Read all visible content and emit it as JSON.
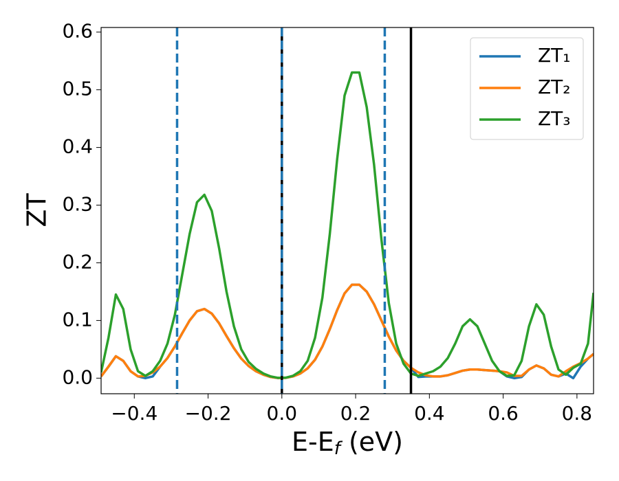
{
  "chart_data": {
    "type": "line",
    "ylabel": "ZT",
    "xlabel": [
      "E-E",
      "f",
      " (eV)"
    ],
    "x": [
      -0.49,
      -0.47,
      -0.45,
      -0.43,
      -0.41,
      -0.39,
      -0.37,
      -0.35,
      -0.33,
      -0.31,
      -0.29,
      -0.27,
      -0.25,
      -0.23,
      -0.21,
      -0.19,
      -0.17,
      -0.15,
      -0.13,
      -0.11,
      -0.09,
      -0.07,
      -0.05,
      -0.03,
      -0.01,
      0.01,
      0.03,
      0.05,
      0.07,
      0.09,
      0.11,
      0.13,
      0.15,
      0.17,
      0.19,
      0.21,
      0.23,
      0.25,
      0.27,
      0.29,
      0.31,
      0.33,
      0.35,
      0.37,
      0.39,
      0.41,
      0.43,
      0.45,
      0.47,
      0.49,
      0.51,
      0.53,
      0.55,
      0.57,
      0.59,
      0.61,
      0.63,
      0.65,
      0.67,
      0.69,
      0.71,
      0.73,
      0.75,
      0.77,
      0.79,
      0.81,
      0.83,
      0.845
    ],
    "series": [
      {
        "name": "ZT₁",
        "color": "#1f77b4",
        "values": [
          0.003,
          0.02,
          0.038,
          0.03,
          0.012,
          0.003,
          0.0,
          0.003,
          0.02,
          0.035,
          0.055,
          0.078,
          0.1,
          0.116,
          0.12,
          0.112,
          0.095,
          0.073,
          0.052,
          0.034,
          0.021,
          0.012,
          0.006,
          0.002,
          0.0003,
          0.0005,
          0.003,
          0.008,
          0.017,
          0.032,
          0.055,
          0.085,
          0.118,
          0.147,
          0.162,
          0.162,
          0.15,
          0.128,
          0.1,
          0.072,
          0.048,
          0.03,
          0.018,
          0.002,
          0.003,
          0.003,
          0.003,
          0.005,
          0.009,
          0.013,
          0.015,
          0.015,
          0.014,
          0.013,
          0.012,
          0.003,
          0.0,
          0.002,
          0.015,
          0.022,
          0.017,
          0.006,
          0.003,
          0.008,
          0.0,
          0.02,
          0.034,
          0.042
        ]
      },
      {
        "name": "ZT₂",
        "color": "#ff7f0e",
        "values": [
          0.003,
          0.02,
          0.038,
          0.03,
          0.012,
          0.003,
          0.004,
          0.01,
          0.02,
          0.035,
          0.055,
          0.078,
          0.1,
          0.116,
          0.12,
          0.112,
          0.095,
          0.073,
          0.052,
          0.034,
          0.021,
          0.012,
          0.006,
          0.002,
          0.0003,
          0.0005,
          0.003,
          0.008,
          0.017,
          0.032,
          0.055,
          0.085,
          0.118,
          0.147,
          0.162,
          0.162,
          0.15,
          0.128,
          0.1,
          0.072,
          0.048,
          0.03,
          0.018,
          0.01,
          0.005,
          0.003,
          0.003,
          0.005,
          0.009,
          0.013,
          0.015,
          0.015,
          0.014,
          0.013,
          0.012,
          0.01,
          0.004,
          0.004,
          0.015,
          0.022,
          0.017,
          0.006,
          0.003,
          0.012,
          0.02,
          0.026,
          0.034,
          0.042
        ]
      },
      {
        "name": "ZT₃",
        "color": "#2ca02c",
        "values": [
          0.01,
          0.07,
          0.145,
          0.12,
          0.05,
          0.012,
          0.004,
          0.012,
          0.03,
          0.06,
          0.11,
          0.18,
          0.25,
          0.305,
          0.318,
          0.29,
          0.225,
          0.15,
          0.09,
          0.05,
          0.028,
          0.016,
          0.008,
          0.003,
          0.0005,
          0.0008,
          0.004,
          0.012,
          0.03,
          0.07,
          0.14,
          0.25,
          0.38,
          0.49,
          0.53,
          0.53,
          0.47,
          0.37,
          0.24,
          0.13,
          0.06,
          0.025,
          0.008,
          0.004,
          0.008,
          0.012,
          0.02,
          0.035,
          0.06,
          0.09,
          0.102,
          0.09,
          0.06,
          0.03,
          0.012,
          0.004,
          0.005,
          0.03,
          0.09,
          0.128,
          0.11,
          0.055,
          0.015,
          0.006,
          0.018,
          0.025,
          0.06,
          0.148
        ]
      }
    ],
    "vlines": [
      {
        "x": 0.0,
        "color": "#000000",
        "style": "solid"
      },
      {
        "x": 0.35,
        "color": "#000000",
        "style": "solid"
      },
      {
        "x": -0.284,
        "color": "#1f77b4",
        "style": "dashed"
      },
      {
        "x": 0.0,
        "color": "#1f77b4",
        "style": "dashed"
      },
      {
        "x": 0.279,
        "color": "#1f77b4",
        "style": "dashed"
      }
    ],
    "xlim": [
      -0.49,
      0.845
    ],
    "ylim": [
      -0.027,
      0.608
    ],
    "xticks": [
      {
        "value": -0.4,
        "label": "−0.4"
      },
      {
        "value": -0.2,
        "label": "−0.2"
      },
      {
        "value": 0,
        "label": "0.0"
      },
      0.2,
      0.4,
      0.6,
      0.8
    ],
    "yticks": [
      {
        "value": 0,
        "label": "0.0"
      },
      0.1,
      0.2,
      0.3,
      0.4,
      0.5,
      0.6
    ],
    "legend": "upper right"
  }
}
